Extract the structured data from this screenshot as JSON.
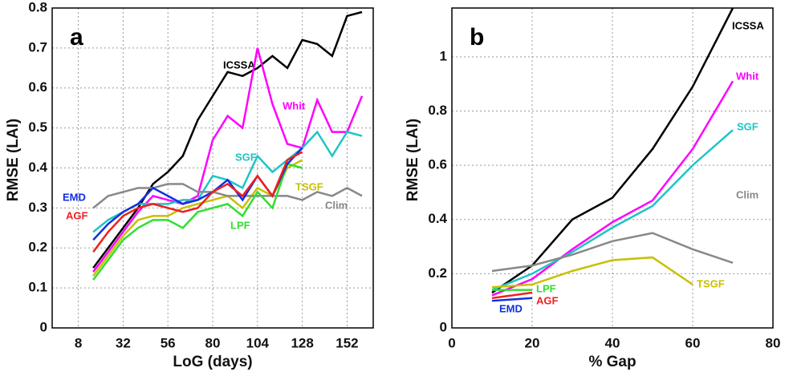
{
  "chart_data": [
    {
      "type": "line",
      "panel": "a",
      "xlabel": "LoG (days)",
      "ylabel": "RMSE (LAI)",
      "xlim": [
        -6,
        166
      ],
      "xticks": [
        8,
        32,
        56,
        80,
        104,
        128,
        152
      ],
      "ylim": [
        0,
        0.8
      ],
      "yticks": [
        0,
        0.1,
        0.2,
        0.3,
        0.4,
        0.5,
        0.6,
        0.7,
        0.8
      ],
      "grid": true,
      "x": [
        16,
        24,
        32,
        40,
        48,
        56,
        64,
        72,
        80,
        88,
        96,
        104,
        112,
        120,
        128,
        136,
        144,
        152,
        160
      ],
      "series": [
        {
          "name": "ICSSA",
          "color": "#000000",
          "values": [
            0.15,
            0.2,
            0.25,
            0.3,
            0.36,
            0.39,
            0.43,
            0.52,
            0.58,
            0.64,
            0.63,
            0.65,
            0.68,
            0.65,
            0.72,
            0.71,
            0.68,
            0.78,
            0.79
          ]
        },
        {
          "name": "Whit",
          "color": "#ff00ff",
          "values": [
            0.14,
            0.19,
            0.24,
            0.29,
            0.33,
            0.32,
            0.31,
            0.33,
            0.47,
            0.53,
            0.5,
            0.7,
            0.56,
            0.46,
            0.45,
            0.57,
            0.49,
            0.49,
            0.58
          ]
        },
        {
          "name": "SGF",
          "color": "#20c4c4",
          "values": [
            0.24,
            0.27,
            0.29,
            0.31,
            0.31,
            0.31,
            0.32,
            0.32,
            0.38,
            0.37,
            0.35,
            0.43,
            0.39,
            0.42,
            0.45,
            0.49,
            0.43,
            0.49,
            0.48
          ]
        },
        {
          "name": "TSGF",
          "color": "#c8c000",
          "values": [
            0.13,
            0.18,
            0.23,
            0.27,
            0.28,
            0.28,
            0.3,
            0.31,
            0.32,
            0.33,
            0.3,
            0.35,
            0.33,
            0.4,
            0.42,
            null,
            null,
            null,
            null
          ]
        },
        {
          "name": "Clim",
          "color": "#888888",
          "values": [
            0.3,
            0.33,
            0.34,
            0.35,
            0.35,
            0.36,
            0.36,
            0.34,
            0.34,
            0.33,
            0.33,
            0.33,
            0.33,
            0.33,
            0.32,
            0.34,
            0.33,
            0.35,
            0.33
          ]
        },
        {
          "name": "LPF",
          "color": "#33dd33",
          "values": [
            0.12,
            0.17,
            0.22,
            0.25,
            0.27,
            0.27,
            0.25,
            0.29,
            0.3,
            0.31,
            0.28,
            0.34,
            0.3,
            0.41,
            0.4,
            null,
            null,
            null,
            null
          ]
        },
        {
          "name": "EMD",
          "color": "#1030e0",
          "values": [
            0.22,
            0.26,
            0.29,
            0.31,
            0.35,
            0.33,
            0.31,
            0.32,
            0.34,
            0.37,
            0.32,
            0.38,
            0.33,
            0.41,
            0.45,
            null,
            null,
            null,
            null
          ]
        },
        {
          "name": "AGF",
          "color": "#ee2020",
          "values": [
            0.19,
            0.24,
            0.28,
            0.3,
            0.31,
            0.3,
            0.29,
            0.3,
            0.34,
            0.36,
            0.33,
            0.38,
            0.33,
            0.42,
            0.44,
            null,
            null,
            null,
            null
          ]
        }
      ]
    },
    {
      "type": "line",
      "panel": "b",
      "xlabel": "% Gap",
      "ylabel": "RMSE (LAI)",
      "xlim": [
        0,
        80
      ],
      "xticks": [
        0,
        20,
        40,
        60,
        80
      ],
      "ylim": [
        0,
        1.18
      ],
      "yticks": [
        0,
        0.2,
        0.4,
        0.6,
        0.8,
        1
      ],
      "grid": true,
      "x": [
        10,
        20,
        30,
        40,
        50,
        60,
        70
      ],
      "series": [
        {
          "name": "ICSSA",
          "color": "#000000",
          "values": [
            0.13,
            0.23,
            0.4,
            0.48,
            0.66,
            0.89,
            1.18
          ]
        },
        {
          "name": "Whit",
          "color": "#ff00ff",
          "values": [
            0.12,
            0.18,
            0.29,
            0.39,
            0.47,
            0.66,
            0.91
          ]
        },
        {
          "name": "SGF",
          "color": "#20c4c4",
          "values": [
            0.14,
            0.2,
            0.28,
            0.37,
            0.45,
            0.6,
            0.73
          ]
        },
        {
          "name": "Clim",
          "color": "#888888",
          "values": [
            0.21,
            0.23,
            0.27,
            0.32,
            0.35,
            0.29,
            0.24
          ]
        },
        {
          "name": "TSGF",
          "color": "#c8c000",
          "values": [
            0.15,
            0.16,
            0.21,
            0.25,
            0.26,
            0.16,
            null
          ]
        },
        {
          "name": "LPF",
          "color": "#33dd33",
          "values": [
            0.14,
            0.14,
            null,
            null,
            null,
            null,
            null
          ]
        },
        {
          "name": "AGF",
          "color": "#ee2020",
          "values": [
            0.11,
            0.13,
            null,
            null,
            null,
            null,
            null
          ]
        },
        {
          "name": "EMD",
          "color": "#1030e0",
          "values": [
            0.1,
            0.11,
            null,
            null,
            null,
            null,
            null
          ]
        }
      ]
    }
  ]
}
